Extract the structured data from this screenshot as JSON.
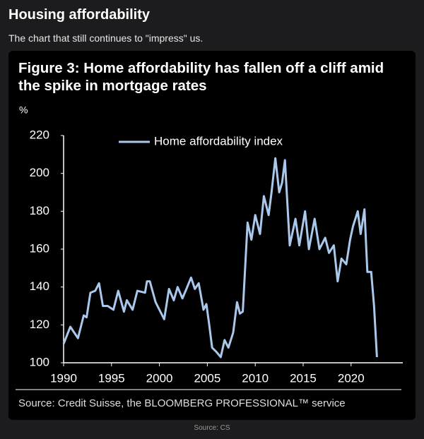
{
  "page": {
    "title": "Housing affordability",
    "subtitle": "The chart that still continues to \"impress\" us.",
    "caption": "Source: CS"
  },
  "chart_data": {
    "type": "line",
    "title": "Figure 3: Home affordability has fallen off a cliff amid the spike in mortgage rates",
    "y_label": "%",
    "source": "Source: Credit Suisse, the BLOOMBERG PROFESSIONAL™ service",
    "legend": "upper center",
    "xlim": [
      1990,
      2025.4
    ],
    "xticks": [
      1990,
      1995,
      2000,
      2005,
      2010,
      2015,
      2020
    ],
    "ylim": [
      100,
      220
    ],
    "yticks": [
      100,
      120,
      140,
      160,
      180,
      200,
      220
    ],
    "x": [
      1990.0,
      1990.7,
      1991.5,
      1992.1,
      1992.4,
      1992.8,
      1993.3,
      1993.7,
      1994.1,
      1994.6,
      1995.2,
      1995.7,
      1996.3,
      1996.6,
      1997.2,
      1997.7,
      1998.5,
      1998.7,
      1999.0,
      1999.6,
      2000.0,
      2000.5,
      2001.0,
      2001.5,
      2001.9,
      2002.4,
      2002.9,
      2003.3,
      2003.7,
      2004.1,
      2004.6,
      2004.9,
      2005.2,
      2005.5,
      2005.9,
      2006.4,
      2006.8,
      2007.2,
      2007.7,
      2008.1,
      2008.4,
      2008.7,
      2009.2,
      2009.6,
      2010.0,
      2010.5,
      2010.9,
      2011.4,
      2011.7,
      2012.1,
      2012.5,
      2012.8,
      2013.1,
      2013.6,
      2014.2,
      2014.6,
      2015.2,
      2015.6,
      2016.2,
      2016.7,
      2017.3,
      2017.7,
      2018.2,
      2018.6,
      2019.0,
      2019.5,
      2019.9,
      2020.2,
      2020.7,
      2021.0,
      2021.4,
      2021.7,
      2022.1,
      2022.4,
      2022.7
    ],
    "series": [
      {
        "name": "Home affordability index",
        "color": "#a9c8ec",
        "values": [
          110,
          119,
          113,
          125,
          124,
          137,
          138,
          142,
          130,
          130,
          128,
          138,
          127,
          133,
          128,
          138,
          137,
          143,
          143,
          132,
          128,
          123,
          139,
          133,
          140,
          134,
          140,
          145,
          139,
          142,
          128,
          131,
          120,
          108,
          106,
          103,
          112,
          108,
          116,
          132,
          126,
          127,
          174,
          165,
          178,
          168,
          188,
          178,
          190,
          208,
          190,
          195,
          207,
          162,
          176,
          162,
          180,
          160,
          176,
          160,
          166,
          158,
          162,
          143,
          155,
          152,
          165,
          172,
          180,
          168,
          181,
          148,
          148,
          130,
          103
        ]
      }
    ]
  }
}
